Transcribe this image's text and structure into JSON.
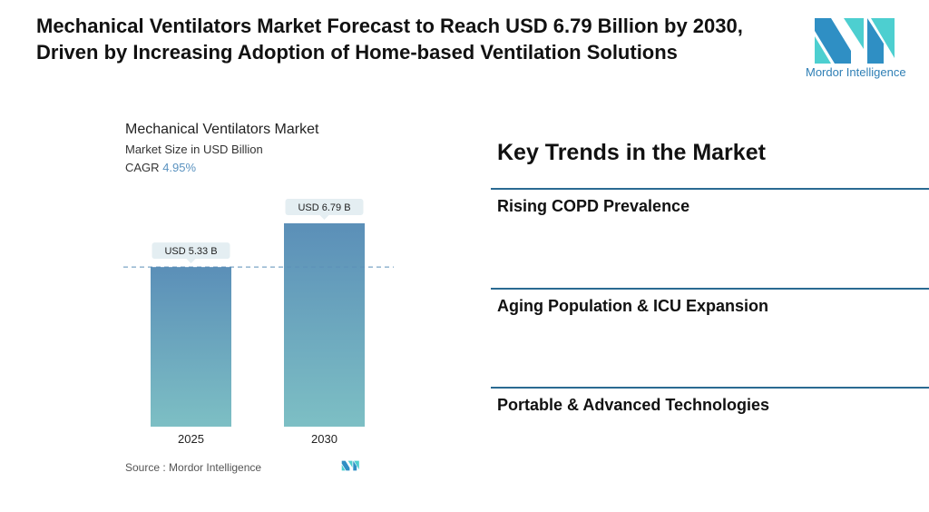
{
  "title": "Mechanical Ventilators Market Forecast to Reach USD 6.79 Billion by 2030, Driven by Increasing Adoption of Home-based Ventilation Solutions",
  "logo": {
    "text": "Mordor Intelligence",
    "colors": [
      "#2f8fc4",
      "#4dcfd0"
    ]
  },
  "chart_data": {
    "type": "bar",
    "title": "Mechanical Ventilators Market",
    "subtitle": "Market Size in USD Billion",
    "cagr_label": "CAGR",
    "cagr_value": "4.95%",
    "categories": [
      "2025",
      "2030"
    ],
    "values": [
      5.33,
      6.79
    ],
    "data_labels": [
      "USD 5.33 B",
      "USD 6.79 B"
    ],
    "ylim": [
      0,
      6.79
    ],
    "reference_line": 5.33,
    "grid": false,
    "bar_colors": [
      "#5b8fb8",
      "#7dbfc4"
    ]
  },
  "source": "Source :  Mordor Intelligence",
  "key_trends": {
    "heading": "Key Trends in the Market",
    "items": [
      "Rising COPD Prevalence",
      "Aging Population & ICU Expansion",
      "Portable & Advanced Technologies"
    ]
  }
}
